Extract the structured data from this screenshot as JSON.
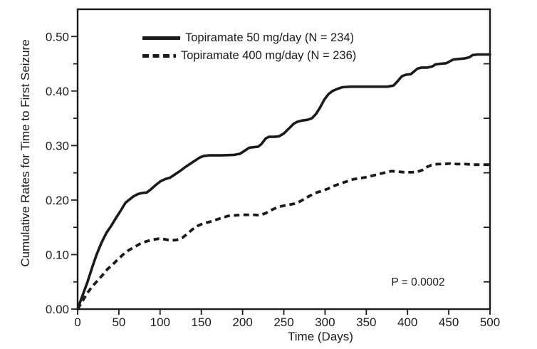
{
  "chart_data": {
    "type": "line",
    "title": "",
    "xlabel": "Time (Days)",
    "ylabel": "Cumulative Rates for Time to First Seizure",
    "xlim": [
      0,
      500
    ],
    "ylim": [
      0,
      0.55
    ],
    "grid": false,
    "legend_position": "top-center-inside",
    "frame_color": "#1a1a1a",
    "x_ticks": [
      {
        "value": 0,
        "label": "0"
      },
      {
        "value": 50,
        "label": "50"
      },
      {
        "value": 100,
        "label": "100"
      },
      {
        "value": 150,
        "label": "150"
      },
      {
        "value": 200,
        "label": "200"
      },
      {
        "value": 250,
        "label": "250"
      },
      {
        "value": 300,
        "label": "300"
      },
      {
        "value": 350,
        "label": "350"
      },
      {
        "value": 400,
        "label": "400"
      },
      {
        "value": 450,
        "label": "450"
      },
      {
        "value": 500,
        "label": "500"
      }
    ],
    "y_ticks": [
      {
        "value": 0.0,
        "label": "0.00"
      },
      {
        "value": 0.1,
        "label": "0.10"
      },
      {
        "value": 0.2,
        "label": "0.20"
      },
      {
        "value": 0.3,
        "label": "0.30"
      },
      {
        "value": 0.4,
        "label": "0.40"
      },
      {
        "value": 0.5,
        "label": "0.50"
      }
    ],
    "y_minor_ticks": [
      0.05,
      0.15,
      0.25,
      0.35,
      0.45
    ],
    "right_axis_minor_ticks": [
      0.05,
      0.15,
      0.25,
      0.35,
      0.45
    ],
    "annotation": {
      "text": "P = 0.0002",
      "x": 413,
      "y": 0.048
    },
    "series": [
      {
        "name": "Topiramate 50 mg/day (N = 234)",
        "line_style": "solid",
        "color": "#1a1a1a",
        "points": [
          [
            0,
            0
          ],
          [
            6,
            0.025
          ],
          [
            12,
            0.05
          ],
          [
            18,
            0.078
          ],
          [
            23,
            0.1
          ],
          [
            29,
            0.122
          ],
          [
            35,
            0.14
          ],
          [
            40,
            0.151
          ],
          [
            46,
            0.166
          ],
          [
            52,
            0.18
          ],
          [
            58,
            0.195
          ],
          [
            62,
            0.2
          ],
          [
            68,
            0.207
          ],
          [
            73,
            0.211
          ],
          [
            78,
            0.213
          ],
          [
            84,
            0.214
          ],
          [
            89,
            0.22
          ],
          [
            95,
            0.228
          ],
          [
            101,
            0.235
          ],
          [
            107,
            0.239
          ],
          [
            112,
            0.241
          ],
          [
            118,
            0.247
          ],
          [
            124,
            0.253
          ],
          [
            130,
            0.26
          ],
          [
            136,
            0.266
          ],
          [
            142,
            0.272
          ],
          [
            148,
            0.278
          ],
          [
            153,
            0.281
          ],
          [
            160,
            0.282
          ],
          [
            175,
            0.282
          ],
          [
            190,
            0.283
          ],
          [
            197,
            0.285
          ],
          [
            203,
            0.291
          ],
          [
            208,
            0.296
          ],
          [
            213,
            0.297
          ],
          [
            219,
            0.298
          ],
          [
            223,
            0.303
          ],
          [
            228,
            0.313
          ],
          [
            232,
            0.316
          ],
          [
            238,
            0.316
          ],
          [
            244,
            0.317
          ],
          [
            250,
            0.322
          ],
          [
            256,
            0.331
          ],
          [
            262,
            0.34
          ],
          [
            267,
            0.344
          ],
          [
            272,
            0.346
          ],
          [
            278,
            0.347
          ],
          [
            284,
            0.35
          ],
          [
            289,
            0.358
          ],
          [
            294,
            0.37
          ],
          [
            299,
            0.384
          ],
          [
            304,
            0.394
          ],
          [
            309,
            0.4
          ],
          [
            315,
            0.404
          ],
          [
            321,
            0.407
          ],
          [
            330,
            0.408
          ],
          [
            345,
            0.408
          ],
          [
            360,
            0.408
          ],
          [
            375,
            0.408
          ],
          [
            383,
            0.41
          ],
          [
            388,
            0.418
          ],
          [
            393,
            0.427
          ],
          [
            398,
            0.43
          ],
          [
            404,
            0.431
          ],
          [
            408,
            0.436
          ],
          [
            412,
            0.441
          ],
          [
            417,
            0.443
          ],
          [
            424,
            0.443
          ],
          [
            430,
            0.445
          ],
          [
            434,
            0.449
          ],
          [
            440,
            0.45
          ],
          [
            447,
            0.451
          ],
          [
            452,
            0.455
          ],
          [
            456,
            0.458
          ],
          [
            463,
            0.459
          ],
          [
            470,
            0.46
          ],
          [
            475,
            0.462
          ],
          [
            479,
            0.466
          ],
          [
            485,
            0.467
          ],
          [
            492,
            0.467
          ],
          [
            500,
            0.467
          ]
        ]
      },
      {
        "name": "Topiramate 400 mg/day (N = 236)",
        "line_style": "dashed",
        "color": "#1a1a1a",
        "points": [
          [
            0,
            0
          ],
          [
            6,
            0.015
          ],
          [
            12,
            0.03
          ],
          [
            18,
            0.042
          ],
          [
            24,
            0.052
          ],
          [
            30,
            0.062
          ],
          [
            36,
            0.073
          ],
          [
            42,
            0.081
          ],
          [
            48,
            0.09
          ],
          [
            55,
            0.1
          ],
          [
            62,
            0.108
          ],
          [
            69,
            0.114
          ],
          [
            76,
            0.12
          ],
          [
            83,
            0.124
          ],
          [
            90,
            0.127
          ],
          [
            98,
            0.129
          ],
          [
            106,
            0.128
          ],
          [
            113,
            0.126
          ],
          [
            120,
            0.127
          ],
          [
            127,
            0.131
          ],
          [
            133,
            0.138
          ],
          [
            139,
            0.146
          ],
          [
            146,
            0.153
          ],
          [
            152,
            0.157
          ],
          [
            160,
            0.16
          ],
          [
            168,
            0.164
          ],
          [
            176,
            0.168
          ],
          [
            183,
            0.171
          ],
          [
            191,
            0.172
          ],
          [
            199,
            0.173
          ],
          [
            207,
            0.173
          ],
          [
            214,
            0.173
          ],
          [
            221,
            0.172
          ],
          [
            228,
            0.176
          ],
          [
            234,
            0.181
          ],
          [
            241,
            0.186
          ],
          [
            248,
            0.189
          ],
          [
            255,
            0.191
          ],
          [
            262,
            0.193
          ],
          [
            269,
            0.197
          ],
          [
            276,
            0.203
          ],
          [
            283,
            0.209
          ],
          [
            290,
            0.214
          ],
          [
            297,
            0.217
          ],
          [
            304,
            0.221
          ],
          [
            311,
            0.226
          ],
          [
            318,
            0.23
          ],
          [
            326,
            0.234
          ],
          [
            334,
            0.238
          ],
          [
            342,
            0.24
          ],
          [
            350,
            0.242
          ],
          [
            358,
            0.245
          ],
          [
            366,
            0.248
          ],
          [
            374,
            0.251
          ],
          [
            381,
            0.253
          ],
          [
            389,
            0.252
          ],
          [
            397,
            0.251
          ],
          [
            405,
            0.251
          ],
          [
            412,
            0.252
          ],
          [
            418,
            0.255
          ],
          [
            424,
            0.261
          ],
          [
            429,
            0.264
          ],
          [
            436,
            0.266
          ],
          [
            444,
            0.266
          ],
          [
            452,
            0.267
          ],
          [
            460,
            0.266
          ],
          [
            470,
            0.266
          ],
          [
            480,
            0.265
          ],
          [
            490,
            0.265
          ],
          [
            500,
            0.265
          ]
        ]
      }
    ]
  }
}
